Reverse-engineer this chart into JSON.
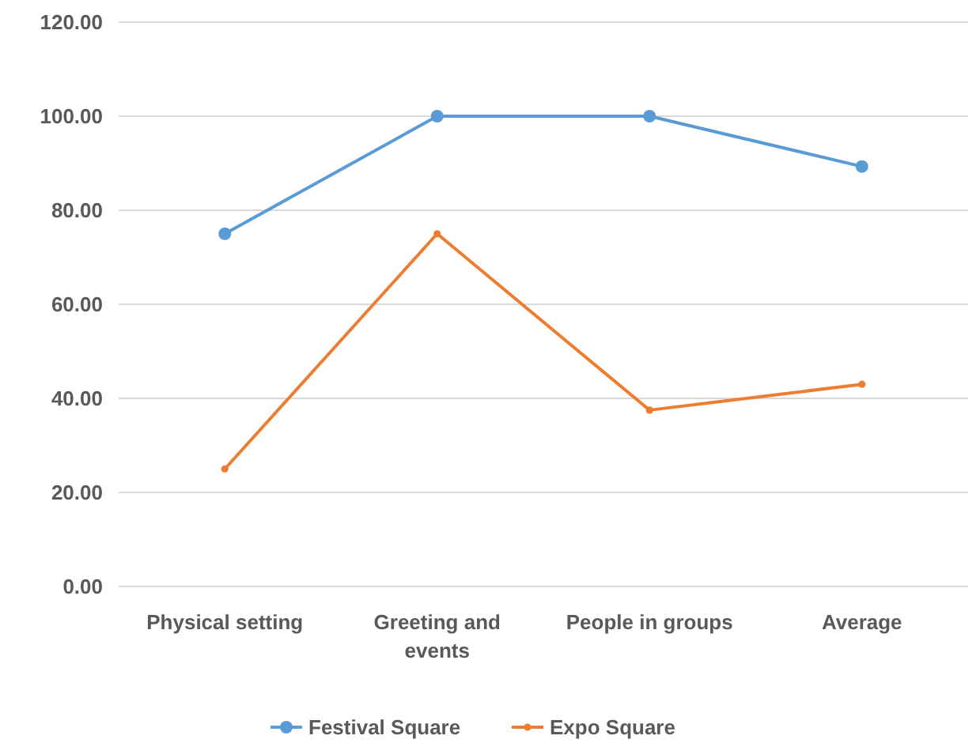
{
  "chart_data": {
    "type": "line",
    "categories": [
      "Physical setting",
      "Greeting and events",
      "People in groups",
      "Average"
    ],
    "series": [
      {
        "name": "Festival Square",
        "color": "#5b9bd5",
        "values": [
          75,
          100,
          100,
          89.3
        ]
      },
      {
        "name": "Expo Square",
        "color": "#ed7d31",
        "values": [
          25,
          75,
          37.5,
          43
        ]
      }
    ],
    "ylim": [
      0,
      120
    ],
    "yticks": [
      {
        "value": 0,
        "label": "0.00"
      },
      {
        "value": 20,
        "label": "20.00"
      },
      {
        "value": 40,
        "label": "40.00"
      },
      {
        "value": 60,
        "label": "60.00"
      },
      {
        "value": 80,
        "label": "80.00"
      },
      {
        "value": 100,
        "label": "100.00"
      },
      {
        "value": 120,
        "label": "120.00"
      }
    ],
    "grid": "y",
    "legend": "bottom",
    "marker": "circle",
    "line_style": "solid"
  }
}
